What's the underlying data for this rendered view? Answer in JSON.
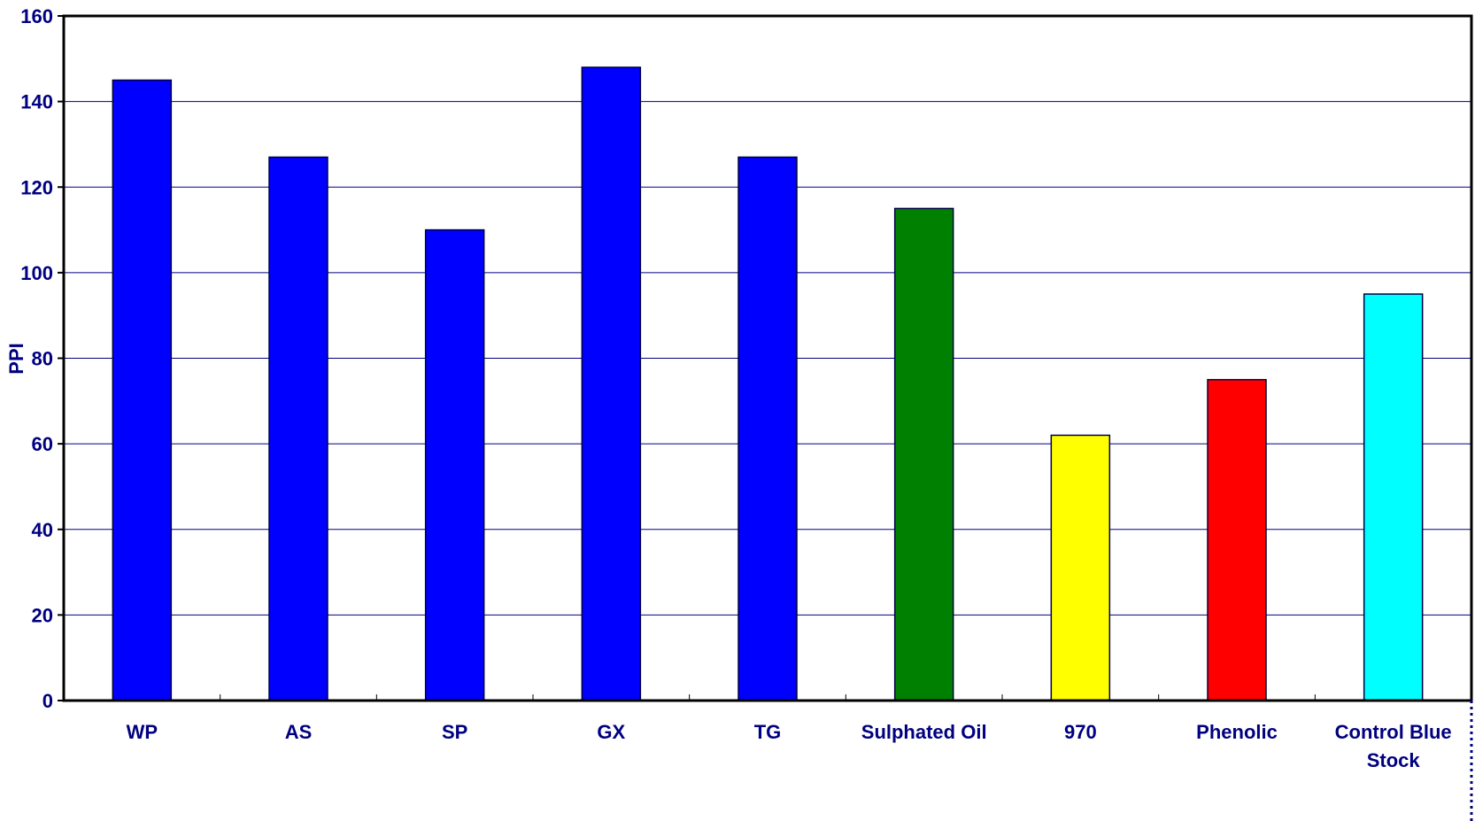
{
  "chart_data": {
    "type": "bar",
    "title": "",
    "xlabel": "",
    "ylabel": "PPI",
    "ylim": [
      0,
      160
    ],
    "yticks": [
      0,
      20,
      40,
      60,
      80,
      100,
      120,
      140,
      160
    ],
    "grid": true,
    "categories": [
      "WP",
      "AS",
      "SP",
      "GX",
      "TG",
      "Sulphated Oil",
      "970",
      "Phenolic",
      "Control Blue Stock"
    ],
    "values": [
      145,
      127,
      110,
      148,
      127,
      115,
      62,
      75,
      95
    ],
    "colors": [
      "#0000ff",
      "#0000ff",
      "#0000ff",
      "#0000ff",
      "#0000ff",
      "#008000",
      "#ffff00",
      "#ff0000",
      "#00ffff"
    ],
    "gridline_color": "#000080",
    "axis_text_color": "#000080"
  }
}
